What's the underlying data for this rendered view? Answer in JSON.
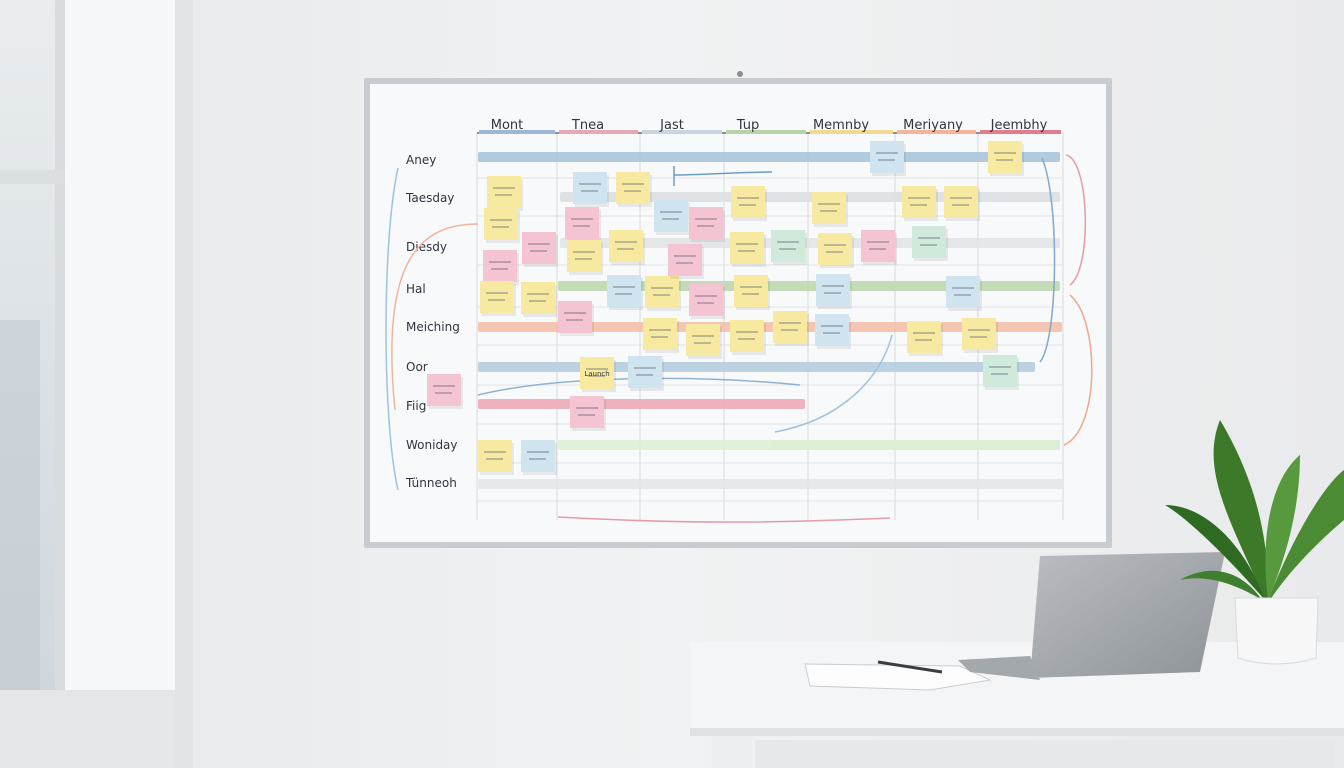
{
  "board": {
    "columns": [
      "Mont",
      "Tnea",
      "Jast",
      "Tup",
      "Memnby",
      "Meriyany",
      "Jeembhy"
    ],
    "rows": [
      "Aney",
      "Taesday",
      "Diesdy",
      "Hal",
      "Meiching",
      "Oor",
      "Fiig",
      "Woniday",
      "Tünneoh"
    ],
    "notes": [
      "Launch"
    ]
  }
}
